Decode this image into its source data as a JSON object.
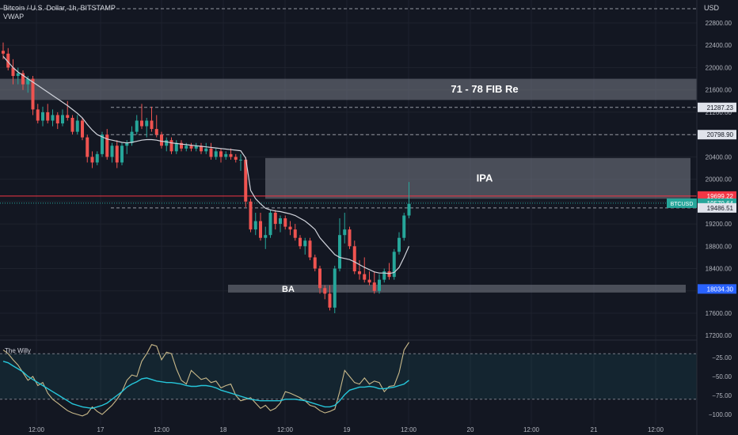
{
  "header": {
    "symbol_title": "Bitcoin / U.S. Dollar, 1h, BITSTAMP",
    "indicator_vwap": "VWAP",
    "currency": "USD"
  },
  "colors": {
    "background": "#131722",
    "up": "#26a69a",
    "down": "#ef5350",
    "vwap_line": "#d1d4dc",
    "zone_fill": "#787b86",
    "last_price_badge": "#26a69a",
    "red_level_badge": "#f23645",
    "blue_level_badge": "#2962ff",
    "willy_line": "#c9b98a",
    "willy_signal": "#26c6da"
  },
  "chart_data": [
    {
      "type": "candlestick",
      "symbol": "BTCUSD",
      "ylim": [
        17000,
        22700
      ],
      "y_ticks": [
        22800,
        22400,
        22000,
        21600,
        21200,
        20800,
        20400,
        20000,
        19600,
        19200,
        18800,
        18400,
        18000,
        17600,
        17200
      ],
      "x_tick_labels": [
        "12:00",
        "17",
        "12:00",
        "18",
        "12:00",
        "19",
        "12:00",
        "20",
        "12:00",
        "21",
        "12:00"
      ],
      "candles": [
        {
          "o": 22300,
          "h": 22450,
          "l": 22150,
          "c": 22250
        },
        {
          "o": 22250,
          "h": 22350,
          "l": 21950,
          "c": 22000
        },
        {
          "o": 22000,
          "h": 22150,
          "l": 21700,
          "c": 21850
        },
        {
          "o": 21850,
          "h": 22000,
          "l": 21700,
          "c": 21900
        },
        {
          "o": 21900,
          "h": 21950,
          "l": 21600,
          "c": 21700
        },
        {
          "o": 21700,
          "h": 21850,
          "l": 21550,
          "c": 21800
        },
        {
          "o": 21800,
          "h": 21850,
          "l": 21150,
          "c": 21250
        },
        {
          "o": 21250,
          "h": 21350,
          "l": 21000,
          "c": 21050
        },
        {
          "o": 21050,
          "h": 21300,
          "l": 20950,
          "c": 21200
        },
        {
          "o": 21200,
          "h": 21350,
          "l": 21000,
          "c": 21050
        },
        {
          "o": 21050,
          "h": 21250,
          "l": 20950,
          "c": 21150
        },
        {
          "o": 21150,
          "h": 21200,
          "l": 20900,
          "c": 21000
        },
        {
          "o": 21000,
          "h": 21250,
          "l": 20950,
          "c": 21150
        },
        {
          "o": 21150,
          "h": 21400,
          "l": 21050,
          "c": 21100
        },
        {
          "o": 21100,
          "h": 21150,
          "l": 20800,
          "c": 20850
        },
        {
          "o": 20850,
          "h": 21150,
          "l": 20800,
          "c": 21050
        },
        {
          "o": 21050,
          "h": 21100,
          "l": 20700,
          "c": 20750
        },
        {
          "o": 20750,
          "h": 20800,
          "l": 20300,
          "c": 20400
        },
        {
          "o": 20400,
          "h": 20500,
          "l": 20200,
          "c": 20300
        },
        {
          "o": 20300,
          "h": 20500,
          "l": 20250,
          "c": 20450
        },
        {
          "o": 20450,
          "h": 20850,
          "l": 20400,
          "c": 20800
        },
        {
          "o": 20800,
          "h": 20900,
          "l": 20350,
          "c": 20400
        },
        {
          "o": 20400,
          "h": 20650,
          "l": 20300,
          "c": 20600
        },
        {
          "o": 20600,
          "h": 20700,
          "l": 20200,
          "c": 20300
        },
        {
          "o": 20300,
          "h": 20650,
          "l": 20250,
          "c": 20600
        },
        {
          "o": 20600,
          "h": 20700,
          "l": 20450,
          "c": 20650
        },
        {
          "o": 20650,
          "h": 20950,
          "l": 20600,
          "c": 20850
        },
        {
          "o": 20850,
          "h": 21150,
          "l": 20800,
          "c": 21050
        },
        {
          "o": 21050,
          "h": 21350,
          "l": 20900,
          "c": 20950
        },
        {
          "o": 20950,
          "h": 21100,
          "l": 20750,
          "c": 21050
        },
        {
          "o": 21050,
          "h": 21300,
          "l": 20850,
          "c": 20900
        },
        {
          "o": 20900,
          "h": 21150,
          "l": 20750,
          "c": 20800
        },
        {
          "o": 20800,
          "h": 20850,
          "l": 20550,
          "c": 20600
        },
        {
          "o": 20600,
          "h": 20750,
          "l": 20500,
          "c": 20700
        },
        {
          "o": 20700,
          "h": 20750,
          "l": 20450,
          "c": 20500
        },
        {
          "o": 20500,
          "h": 20700,
          "l": 20450,
          "c": 20650
        },
        {
          "o": 20650,
          "h": 20700,
          "l": 20500,
          "c": 20550
        },
        {
          "o": 20550,
          "h": 20650,
          "l": 20500,
          "c": 20600
        },
        {
          "o": 20600,
          "h": 20650,
          "l": 20500,
          "c": 20550
        },
        {
          "o": 20550,
          "h": 20650,
          "l": 20500,
          "c": 20600
        },
        {
          "o": 20600,
          "h": 20650,
          "l": 20450,
          "c": 20500
        },
        {
          "o": 20500,
          "h": 20650,
          "l": 20450,
          "c": 20550
        },
        {
          "o": 20550,
          "h": 20650,
          "l": 20350,
          "c": 20400
        },
        {
          "o": 20400,
          "h": 20550,
          "l": 20350,
          "c": 20500
        },
        {
          "o": 20500,
          "h": 20550,
          "l": 20300,
          "c": 20400
        },
        {
          "o": 20400,
          "h": 20500,
          "l": 20350,
          "c": 20450
        },
        {
          "o": 20450,
          "h": 20550,
          "l": 20350,
          "c": 20400
        },
        {
          "o": 20400,
          "h": 20450,
          "l": 20300,
          "c": 20350
        },
        {
          "o": 20350,
          "h": 20450,
          "l": 20150,
          "c": 20350
        },
        {
          "o": 20350,
          "h": 20400,
          "l": 19500,
          "c": 19600
        },
        {
          "o": 19600,
          "h": 19650,
          "l": 19050,
          "c": 19100
        },
        {
          "o": 19100,
          "h": 19400,
          "l": 19000,
          "c": 19250
        },
        {
          "o": 19250,
          "h": 19400,
          "l": 18900,
          "c": 18950
        },
        {
          "o": 18950,
          "h": 19150,
          "l": 18750,
          "c": 19000
        },
        {
          "o": 19000,
          "h": 19450,
          "l": 18950,
          "c": 19400
        },
        {
          "o": 19400,
          "h": 19450,
          "l": 19100,
          "c": 19200
        },
        {
          "o": 19200,
          "h": 19350,
          "l": 19050,
          "c": 19300
        },
        {
          "o": 19300,
          "h": 19350,
          "l": 19100,
          "c": 19150
        },
        {
          "o": 19150,
          "h": 19250,
          "l": 19000,
          "c": 19100
        },
        {
          "o": 19100,
          "h": 19200,
          "l": 18900,
          "c": 18950
        },
        {
          "o": 18950,
          "h": 19000,
          "l": 18750,
          "c": 18800
        },
        {
          "o": 18800,
          "h": 18950,
          "l": 18650,
          "c": 18900
        },
        {
          "o": 18900,
          "h": 18950,
          "l": 18550,
          "c": 18600
        },
        {
          "o": 18600,
          "h": 18650,
          "l": 18350,
          "c": 18400
        },
        {
          "o": 18400,
          "h": 18450,
          "l": 17950,
          "c": 18050
        },
        {
          "o": 18050,
          "h": 18100,
          "l": 17850,
          "c": 17950
        },
        {
          "o": 17950,
          "h": 18100,
          "l": 17650,
          "c": 17700
        },
        {
          "o": 17700,
          "h": 18450,
          "l": 17600,
          "c": 18400
        },
        {
          "o": 18400,
          "h": 19300,
          "l": 18350,
          "c": 19000
        },
        {
          "o": 19000,
          "h": 19400,
          "l": 18850,
          "c": 19100
        },
        {
          "o": 19100,
          "h": 19150,
          "l": 18750,
          "c": 18800
        },
        {
          "o": 18800,
          "h": 18900,
          "l": 18300,
          "c": 18350
        },
        {
          "o": 18350,
          "h": 18550,
          "l": 18200,
          "c": 18300
        },
        {
          "o": 18300,
          "h": 18600,
          "l": 18150,
          "c": 18200
        },
        {
          "o": 18200,
          "h": 18350,
          "l": 18100,
          "c": 18150
        },
        {
          "o": 18150,
          "h": 18350,
          "l": 17950,
          "c": 18000
        },
        {
          "o": 18000,
          "h": 18300,
          "l": 17950,
          "c": 18200
        },
        {
          "o": 18200,
          "h": 18400,
          "l": 18150,
          "c": 18350
        },
        {
          "o": 18350,
          "h": 18500,
          "l": 18200,
          "c": 18250
        },
        {
          "o": 18250,
          "h": 18750,
          "l": 18200,
          "c": 18700
        },
        {
          "o": 18700,
          "h": 19050,
          "l": 18650,
          "c": 18950
        },
        {
          "o": 18950,
          "h": 19400,
          "l": 18900,
          "c": 19350
        },
        {
          "o": 19350,
          "h": 19950,
          "l": 19300,
          "c": 19560
        }
      ],
      "vwap": [
        22200,
        22100,
        22000,
        21920,
        21860,
        21800,
        21740,
        21680,
        21620,
        21560,
        21500,
        21440,
        21380,
        21320,
        21250,
        21180,
        21100,
        20980,
        20880,
        20800,
        20760,
        20720,
        20700,
        20680,
        20660,
        20650,
        20660,
        20680,
        20700,
        20710,
        20710,
        20700,
        20680,
        20670,
        20650,
        20640,
        20630,
        20620,
        20610,
        20600,
        20590,
        20580,
        20570,
        20560,
        20550,
        20540,
        20530,
        20520,
        20510,
        20380,
        19800,
        19650,
        19560,
        19480,
        19450,
        19430,
        19420,
        19400,
        19380,
        19350,
        19300,
        19250,
        19180,
        19100,
        18950,
        18850,
        18750,
        18650,
        18600,
        18580,
        18560,
        18520,
        18470,
        18420,
        18380,
        18340,
        18320,
        18320,
        18310,
        18330,
        18420,
        18600,
        18800
      ],
      "zones": [
        {
          "label": "71 - 78 FIB Re",
          "top": 21800,
          "bottom": 21420
        },
        {
          "label": "IPA",
          "top": 20380,
          "bottom": 19650
        },
        {
          "label": "BA",
          "top": 18110,
          "bottom": 17970
        }
      ],
      "levels": [
        {
          "value": 22780,
          "label": "USD",
          "style": "dashed"
        },
        {
          "value": 21287.23,
          "label": "21287.23",
          "style": "dashed"
        },
        {
          "value": 20798.9,
          "label": "20798.90",
          "style": "dashed"
        },
        {
          "value": 19699.22,
          "label": "19699.22",
          "style": "solid-red"
        },
        {
          "value": 19570.64,
          "label": "19570.64",
          "style": "dotted-green"
        },
        {
          "value": 19486.51,
          "label": "19486.51",
          "style": "dashed"
        },
        {
          "value": 18034.3,
          "label": "18034.30",
          "style": "zone"
        }
      ],
      "last_price_tag": "BTCUSD"
    },
    {
      "type": "line",
      "title": "The Willy",
      "ylim": [
        -100,
        0
      ],
      "y_ticks": [
        -25.0,
        -50.0,
        -75.0,
        -100.0
      ],
      "band": [
        -20,
        -80
      ],
      "willy": [
        -15,
        -20,
        -28,
        -35,
        -45,
        -55,
        -50,
        -62,
        -58,
        -72,
        -80,
        -85,
        -90,
        -95,
        -98,
        -100,
        -102,
        -99,
        -90,
        -96,
        -100,
        -94,
        -88,
        -80,
        -70,
        -55,
        -48,
        -50,
        -30,
        -20,
        -8,
        -10,
        -28,
        -18,
        -20,
        -40,
        -55,
        -60,
        -42,
        -48,
        -54,
        -52,
        -58,
        -56,
        -65,
        -62,
        -60,
        -75,
        -82,
        -80,
        -78,
        -85,
        -92,
        -88,
        -95,
        -92,
        -85,
        -70,
        -72,
        -75,
        -78,
        -82,
        -88,
        -90,
        -95,
        -98,
        -96,
        -93,
        -70,
        -42,
        -50,
        -58,
        -60,
        -52,
        -60,
        -56,
        -58,
        -70,
        -63,
        -62,
        -45,
        -15,
        -5
      ],
      "signal": [
        -30,
        -32,
        -36,
        -40,
        -44,
        -50,
        -54,
        -58,
        -62,
        -66,
        -70,
        -74,
        -78,
        -82,
        -86,
        -88,
        -90,
        -91,
        -92,
        -90,
        -88,
        -85,
        -80,
        -75,
        -70,
        -64,
        -60,
        -57,
        -53,
        -52,
        -54,
        -56,
        -57,
        -58,
        -58,
        -59,
        -60,
        -62,
        -63,
        -63,
        -62,
        -62,
        -63,
        -65,
        -68,
        -70,
        -72,
        -74,
        -76,
        -78,
        -80,
        -81,
        -82,
        -82,
        -82,
        -82,
        -82,
        -80,
        -80,
        -80,
        -81,
        -82,
        -84,
        -86,
        -88,
        -90,
        -90,
        -88,
        -82,
        -74,
        -68,
        -66,
        -64,
        -64,
        -63,
        -64,
        -66,
        -66,
        -65,
        -64,
        -62,
        -60,
        -55
      ]
    }
  ]
}
